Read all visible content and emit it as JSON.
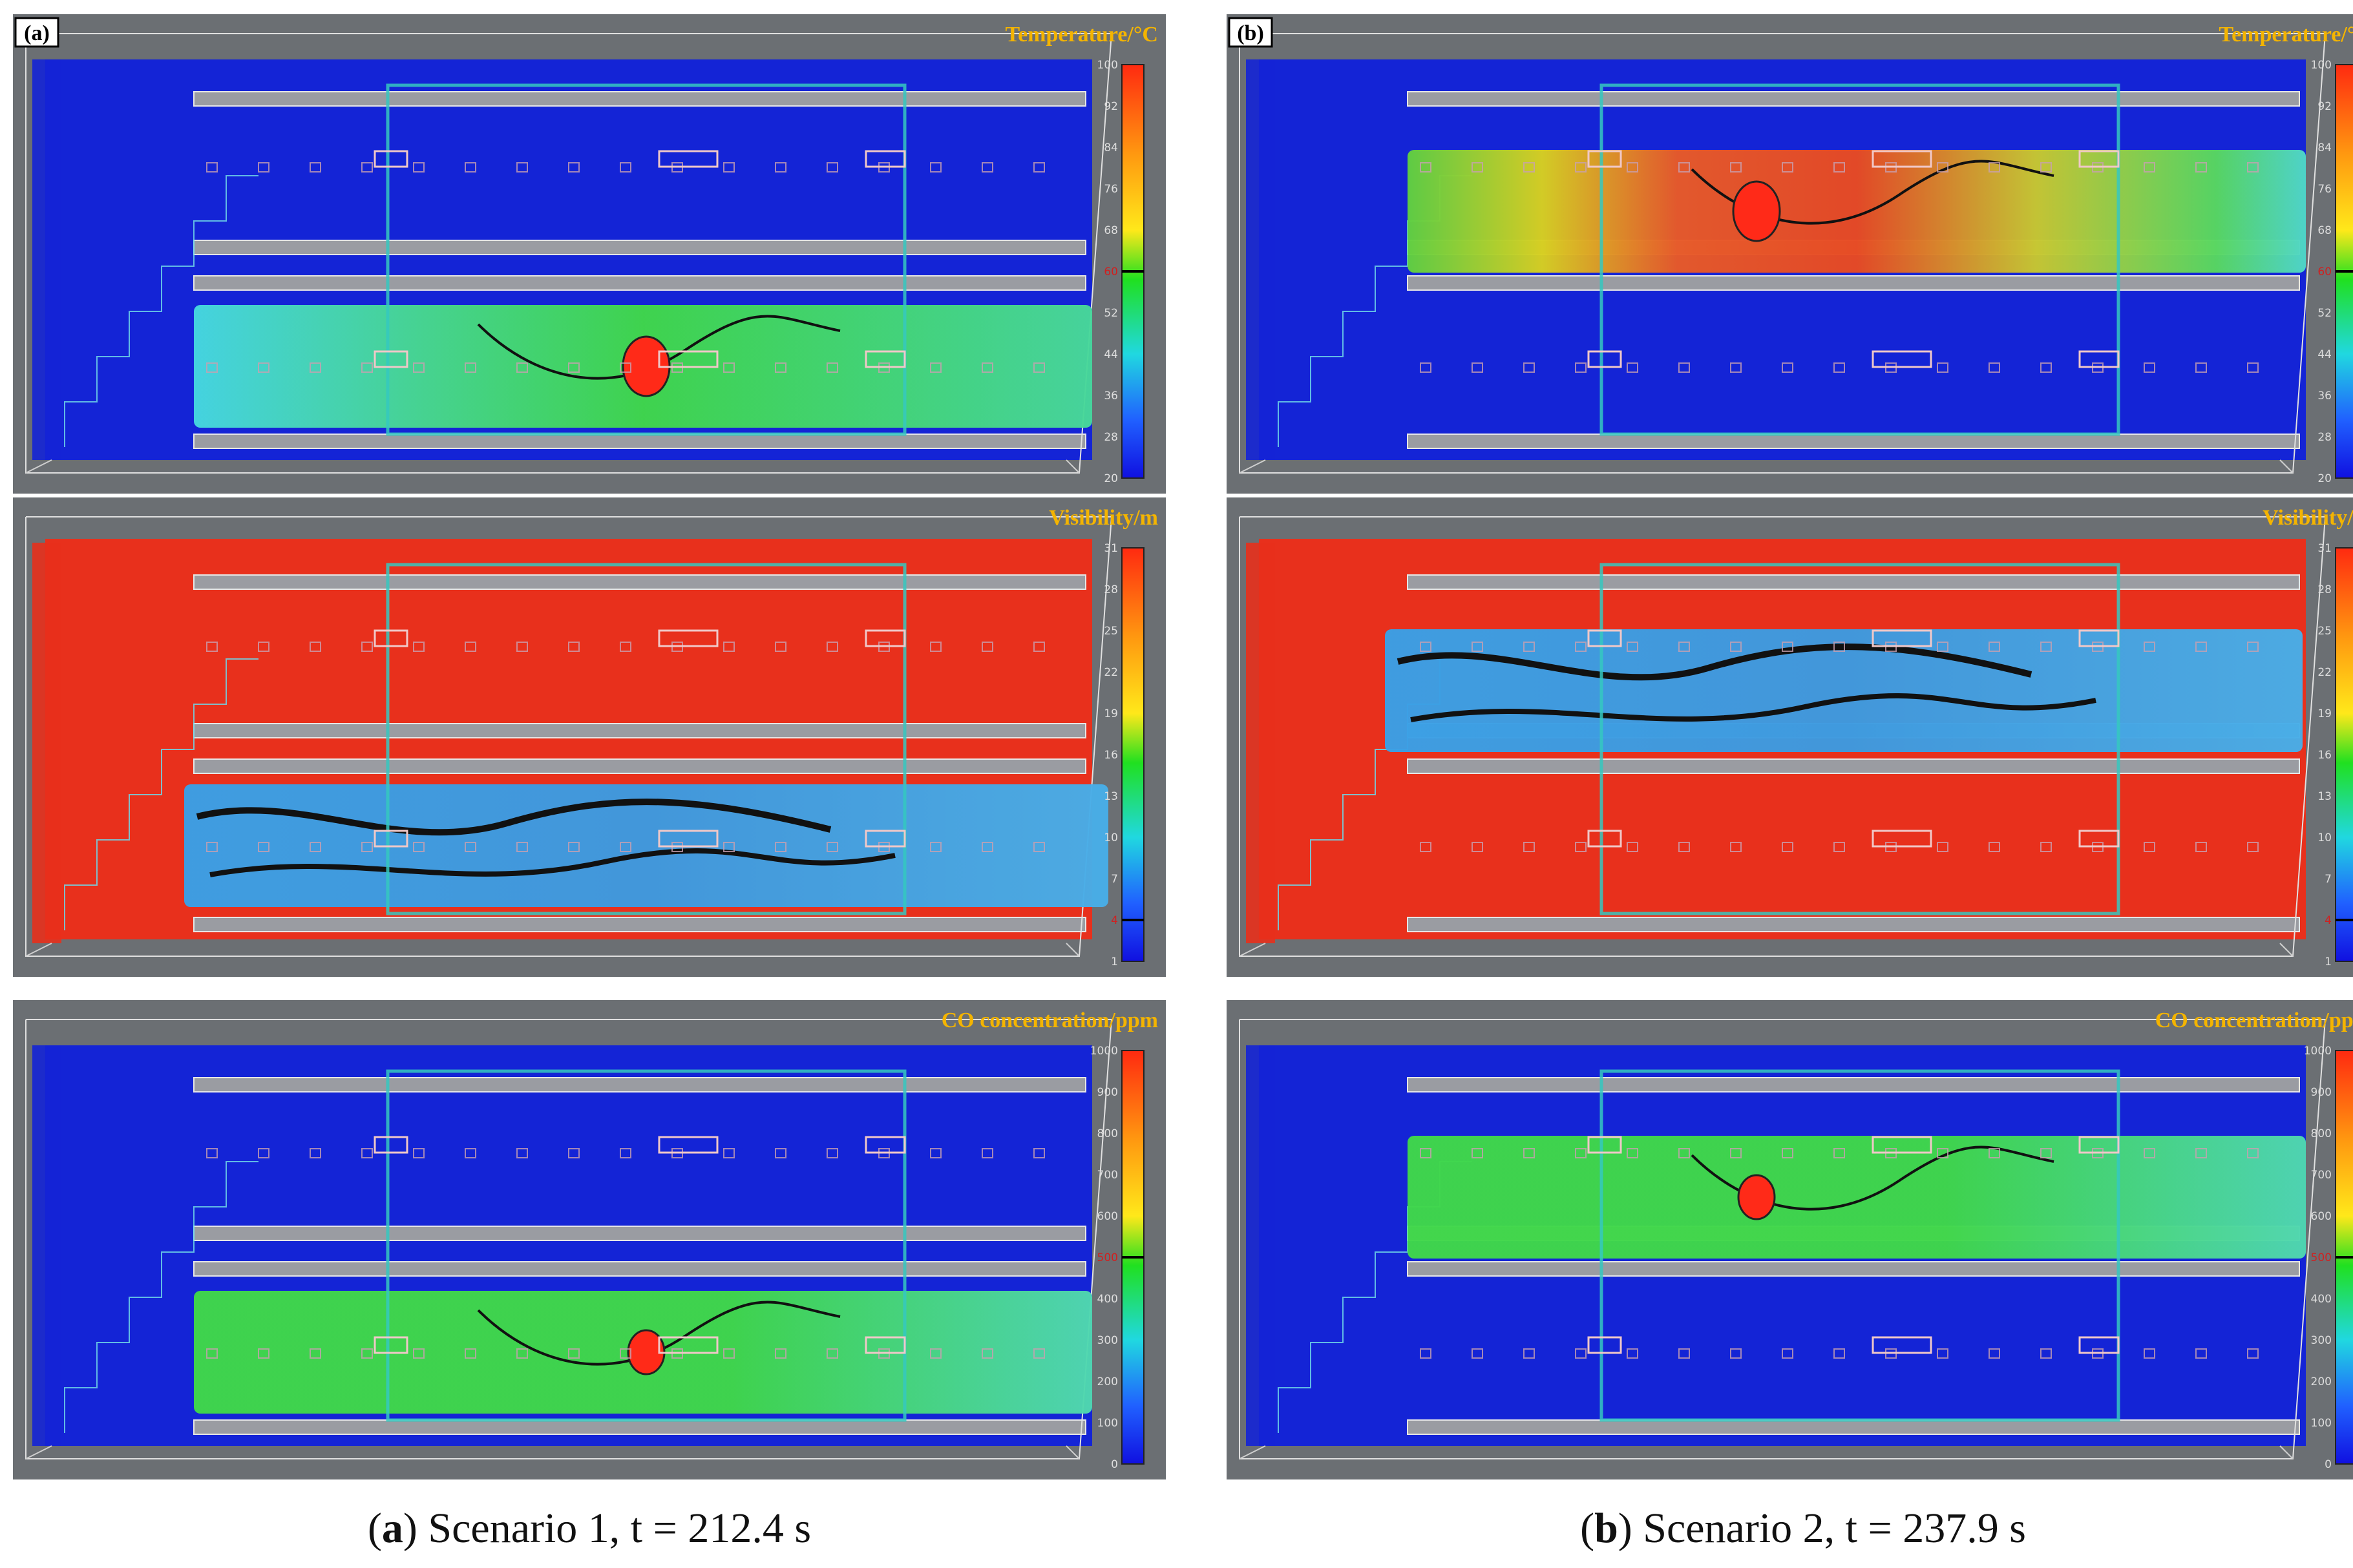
{
  "colors": {
    "background": "#6b6f73",
    "cold": "#1424d6",
    "hot": "#e8301c",
    "layer_green": "#40d84a",
    "layer_cyan": "#46c8e6",
    "layer_blue": "#3a9ee0",
    "title": "#f4b400"
  },
  "scenarios": [
    {
      "tag": "(a)",
      "caption_letter": "a",
      "caption_text": "Scenario 1, t = 212.4 s",
      "smoke_layer": "lower",
      "panels": [
        {
          "title": "Temperature/°C",
          "ticks": [
            "100",
            "92",
            "84",
            "76",
            "68",
            "60",
            "52",
            "44",
            "36",
            "28",
            "20"
          ],
          "highlight_tick": "60",
          "layer_color": "green"
        },
        {
          "title": "Visibility/m",
          "ticks": [
            "31",
            "28",
            "25",
            "22",
            "19",
            "16",
            "13",
            "10",
            "7",
            "4",
            "1"
          ],
          "highlight_tick": "4",
          "layer_color": "blue"
        },
        {
          "title": "CO concentration/ppm",
          "ticks": [
            "1000",
            "900",
            "800",
            "700",
            "600",
            "500",
            "400",
            "300",
            "200",
            "100",
            "0"
          ],
          "highlight_tick": "500",
          "layer_color": "green"
        }
      ]
    },
    {
      "tag": "(b)",
      "caption_letter": "b",
      "caption_text": "Scenario 2, t = 237.9 s",
      "smoke_layer": "upper",
      "panels": [
        {
          "title": "Temperature/°C",
          "ticks": [
            "100",
            "92",
            "84",
            "76",
            "68",
            "60",
            "52",
            "44",
            "36",
            "28",
            "20"
          ],
          "highlight_tick": "60",
          "layer_color": "greenred"
        },
        {
          "title": "Visibility/m",
          "ticks": [
            "31",
            "28",
            "25",
            "22",
            "19",
            "16",
            "13",
            "10",
            "7",
            "4",
            "1"
          ],
          "highlight_tick": "4",
          "layer_color": "blue"
        },
        {
          "title": "CO concentration/ppm",
          "ticks": [
            "1000",
            "900",
            "800",
            "700",
            "600",
            "500",
            "400",
            "300",
            "200",
            "100",
            "0"
          ],
          "highlight_tick": "500",
          "layer_color": "green"
        }
      ]
    }
  ]
}
